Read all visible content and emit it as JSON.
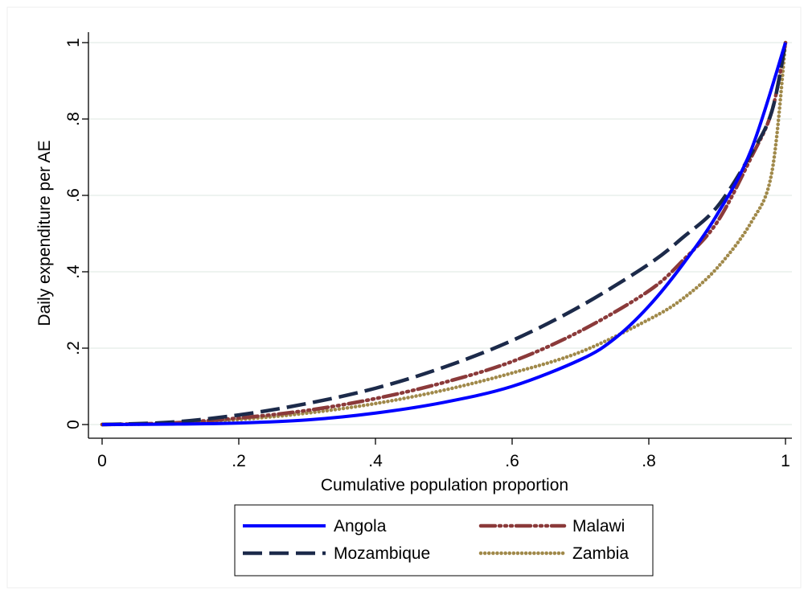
{
  "chart_data": {
    "type": "line",
    "title": "",
    "xlabel": "Cumulative population proportion",
    "ylabel": "Daily expenditure per AE",
    "xlim": [
      0,
      1
    ],
    "ylim": [
      0,
      1
    ],
    "x_ticks": [
      0,
      0.2,
      0.4,
      0.6,
      0.8,
      1
    ],
    "x_tick_labels": [
      "0",
      ".2",
      ".4",
      ".6",
      ".8",
      "1"
    ],
    "y_ticks": [
      0,
      0.2,
      0.4,
      0.6,
      0.8,
      1
    ],
    "y_tick_labels": [
      "0",
      ".2",
      ".4",
      ".6",
      ".8",
      "1"
    ],
    "grid": "horizontal",
    "legend_position": "bottom",
    "series": [
      {
        "name": "Angola",
        "color": "#0000ff",
        "style": "solid",
        "x": [
          0,
          0.1,
          0.2,
          0.3,
          0.4,
          0.5,
          0.6,
          0.7,
          0.75,
          0.8,
          0.85,
          0.9,
          0.95,
          1.0
        ],
        "y": [
          0,
          0.001,
          0.004,
          0.012,
          0.03,
          0.058,
          0.1,
          0.17,
          0.225,
          0.31,
          0.42,
          0.55,
          0.72,
          1.0
        ]
      },
      {
        "name": "Malawi",
        "color": "#8b3a3a",
        "style": "dash-dot",
        "x": [
          0,
          0.1,
          0.2,
          0.3,
          0.4,
          0.5,
          0.6,
          0.7,
          0.8,
          0.85,
          0.9,
          0.95,
          0.98,
          1.0
        ],
        "y": [
          0,
          0.004,
          0.017,
          0.037,
          0.068,
          0.11,
          0.165,
          0.245,
          0.35,
          0.43,
          0.53,
          0.7,
          0.82,
          1.0
        ]
      },
      {
        "name": "Mozambique",
        "color": "#1c2a4a",
        "style": "long-dash",
        "x": [
          0,
          0.1,
          0.2,
          0.3,
          0.4,
          0.5,
          0.6,
          0.7,
          0.8,
          0.85,
          0.9,
          0.95,
          0.98,
          1.0
        ],
        "y": [
          0,
          0.006,
          0.025,
          0.055,
          0.095,
          0.15,
          0.22,
          0.31,
          0.42,
          0.49,
          0.57,
          0.71,
          0.82,
          1.0
        ]
      },
      {
        "name": "Zambia",
        "color": "#a0894a",
        "style": "dotted",
        "x": [
          0,
          0.1,
          0.2,
          0.3,
          0.4,
          0.5,
          0.6,
          0.7,
          0.8,
          0.85,
          0.9,
          0.95,
          0.98,
          1.0
        ],
        "y": [
          0,
          0.003,
          0.013,
          0.03,
          0.055,
          0.09,
          0.135,
          0.19,
          0.275,
          0.33,
          0.41,
          0.53,
          0.66,
          1.0
        ]
      }
    ],
    "legend_order": [
      "Angola",
      "Malawi",
      "Mozambique",
      "Zambia"
    ]
  }
}
